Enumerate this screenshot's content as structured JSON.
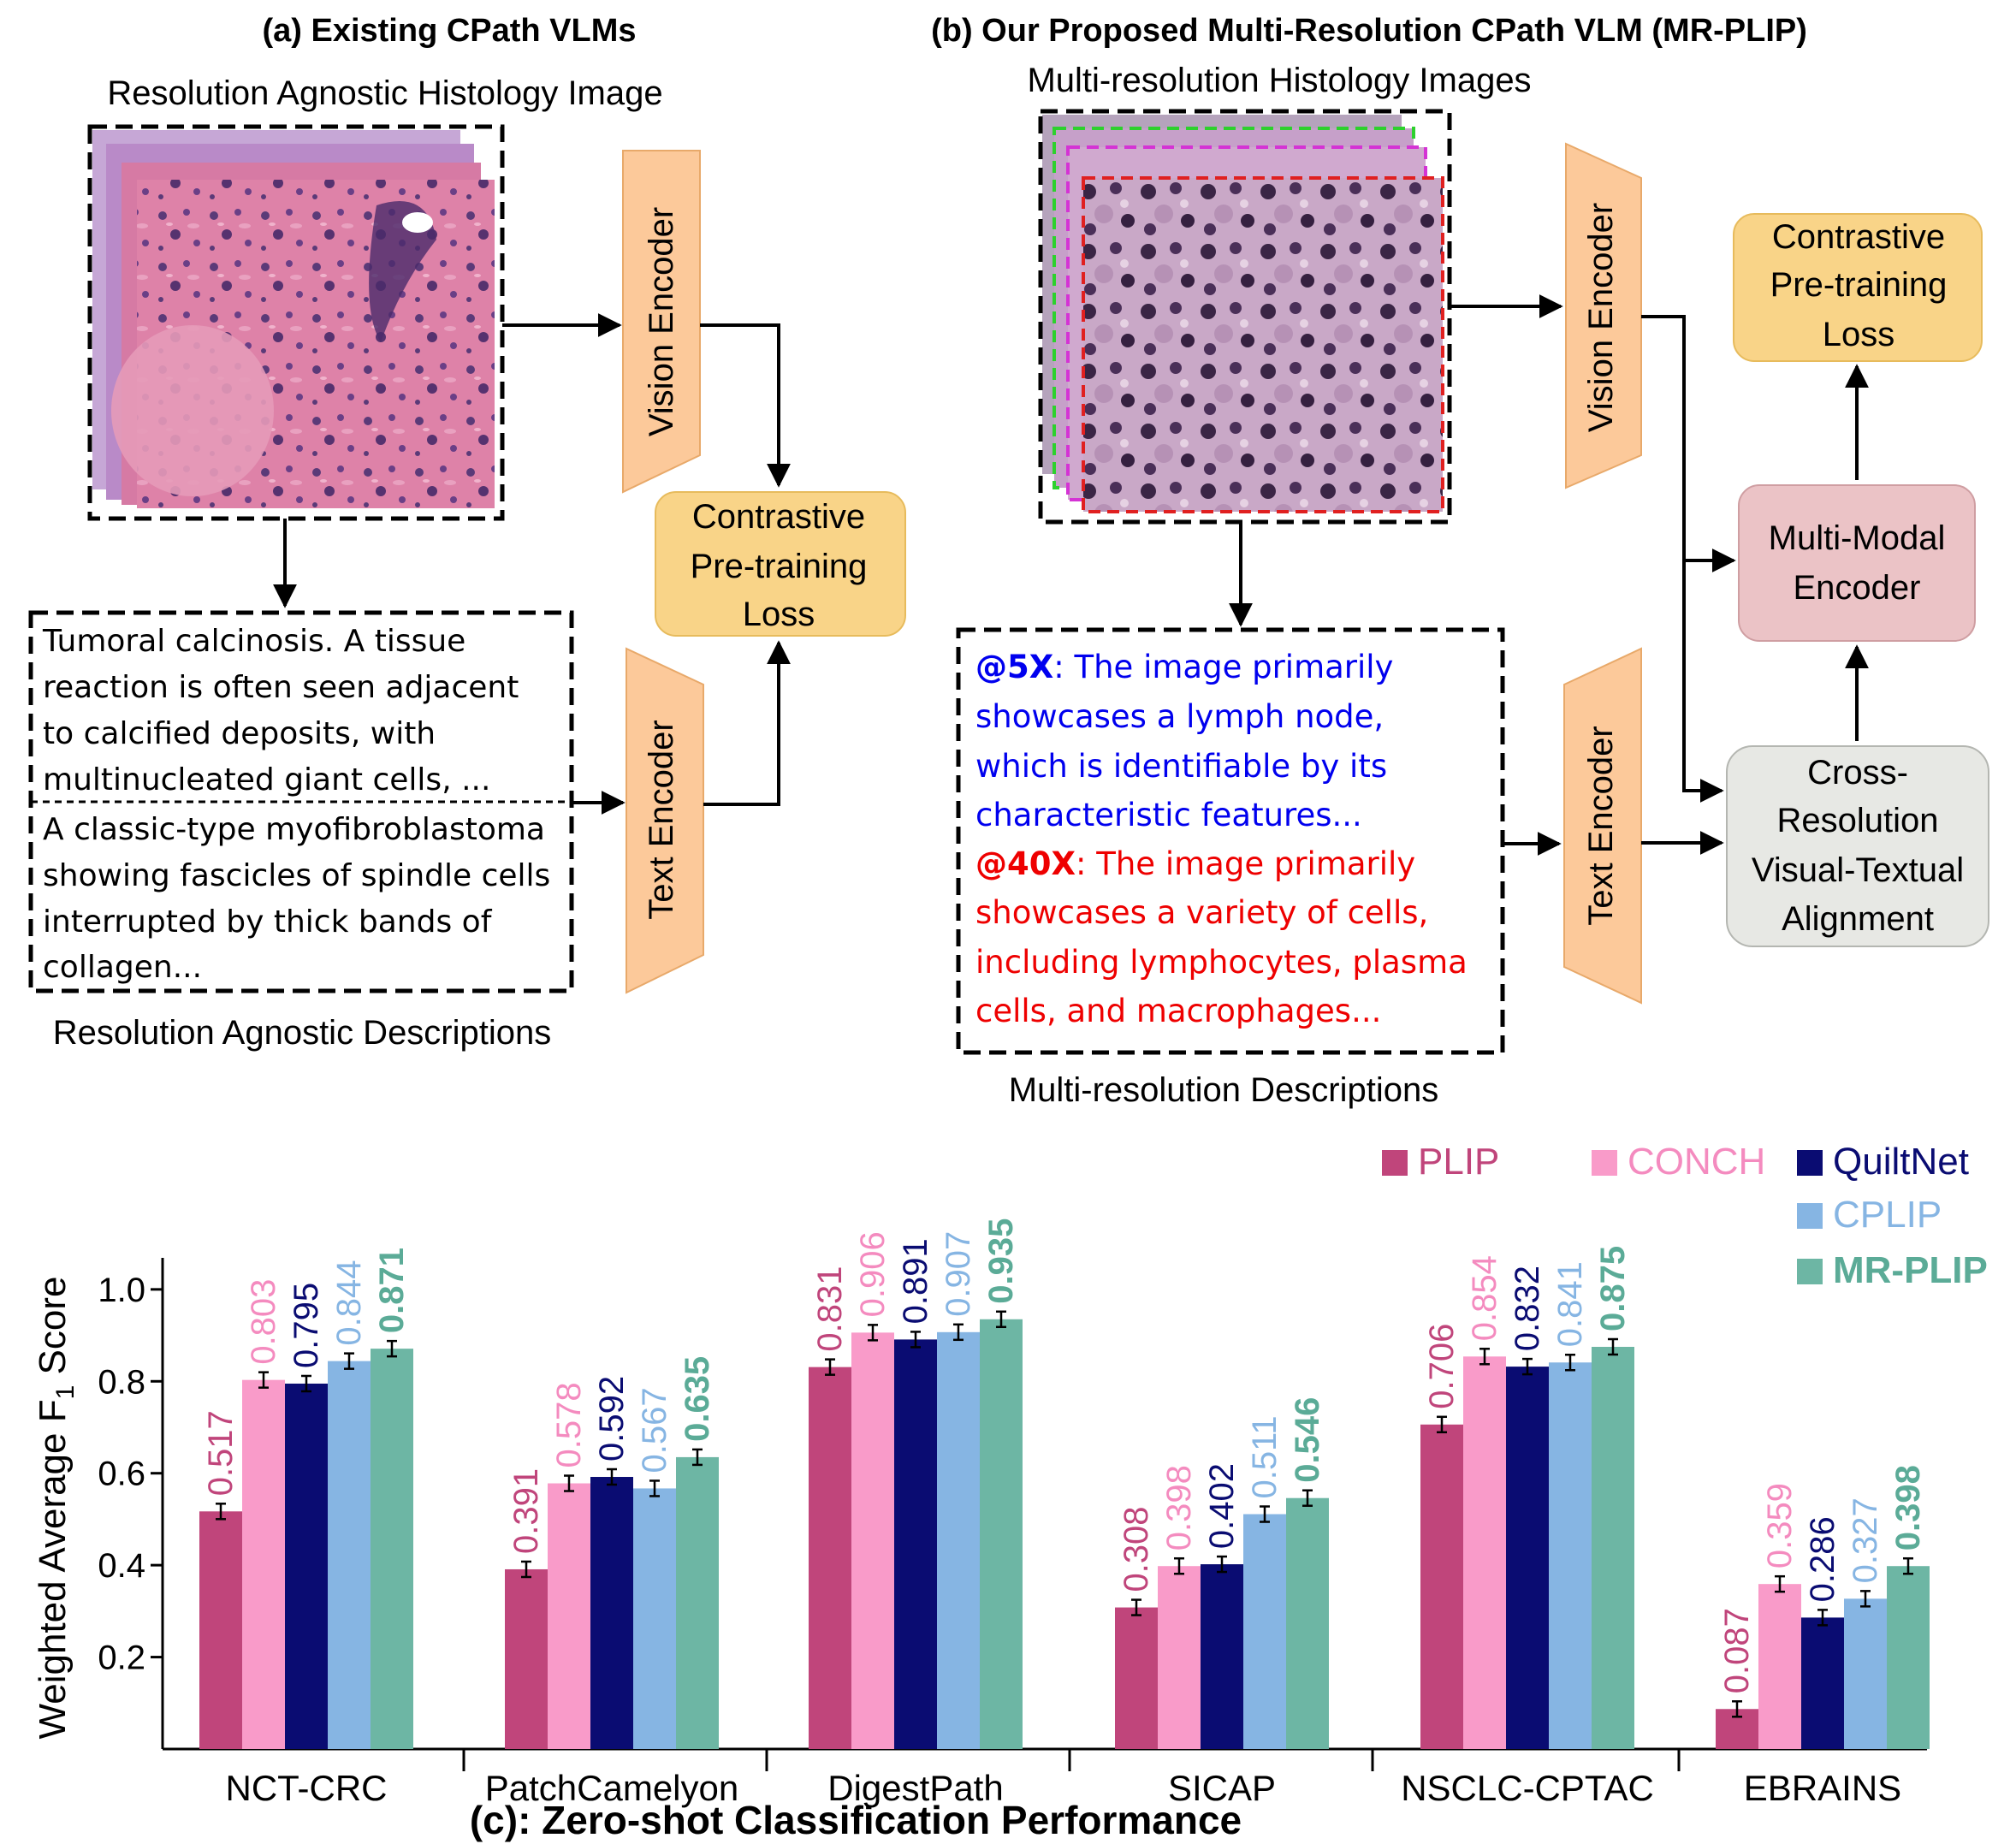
{
  "panel_a": {
    "title": "(a) Existing CPath VLMs",
    "image_caption": "Resolution Agnostic Histology Image",
    "vision_encoder": "Vision Encoder",
    "text_encoder": "Text Encoder",
    "loss_lines": [
      "Contrastive",
      "Pre-training",
      "Loss"
    ],
    "desc1_lines": [
      "Tumoral calcinosis. A tissue",
      "reaction is often seen adjacent",
      "to calcified deposits, with",
      "multinucleated giant cells, ..."
    ],
    "desc2_lines": [
      "A classic-type myofibroblastoma",
      "showing fascicles of spindle cells",
      "interrupted by thick bands of",
      "collagen..."
    ],
    "desc_caption": "Resolution Agnostic Descriptions"
  },
  "panel_b": {
    "title": "(b) Our Proposed Multi-Resolution CPath VLM (MR-PLIP)",
    "image_caption": "Multi-resolution Histology Images",
    "vision_encoder": "Vision Encoder",
    "text_encoder": "Text Encoder",
    "loss_lines": [
      "Contrastive",
      "Pre-training",
      "Loss"
    ],
    "multimodal_lines": [
      "Multi-Modal",
      "Encoder"
    ],
    "crossres_lines": [
      "Cross-",
      "Resolution",
      "Visual-Textual",
      "Alignment"
    ],
    "desc_5x_tag": "@5X",
    "desc_5x_lines": [
      ": The image primarily",
      "showcases a lymph node,",
      "which is identifiable by its",
      "characteristic features..."
    ],
    "desc_40x_tag": "@40X",
    "desc_40x_lines": [
      ": The image primarily",
      "showcases a variety of cells,",
      "including lymphocytes, plasma",
      "cells, and macrophages..."
    ],
    "desc_caption": "Multi-resolution Descriptions"
  },
  "colors": {
    "encoder_fill": "#fcc99a",
    "encoder_stroke": "#e8a96a",
    "loss_fill": "#f9d488",
    "loss_stroke": "#e7bb5c",
    "multimodal_fill": "#ebc3c6",
    "multimodal_stroke": "#cf9ea2",
    "crossres_fill": "#e7e8e4",
    "crossres_stroke": "#b4b6b1",
    "blue_text": "#0000ee",
    "red_text": "#ee0000",
    "tissue_pink": "#d9709d",
    "tissue_purple": "#5b3a78",
    "tissue_lavender": "#c8a9c5"
  },
  "chart_data": {
    "type": "bar",
    "title": "(c): Zero-shot Classification Performance",
    "xlabel": "",
    "ylabel": "Weighted Average F1 Score",
    "ylabel_main": "Weighted Average F",
    "ylabel_sub": "1",
    "ylabel_tail": " Score",
    "ylim": [
      0,
      1.05
    ],
    "yticks": [
      "0.2",
      "0.4",
      "0.6",
      "0.8",
      "1.0"
    ],
    "ytick_values": [
      0.2,
      0.4,
      0.6,
      0.8,
      1.0
    ],
    "error_bars": true,
    "legend_position": "top-right",
    "categories": [
      "NCT-CRC",
      "PatchCamelyon",
      "DigestPath",
      "SICAP",
      "NSCLC-CPTAC",
      "EBRAINS"
    ],
    "series": [
      {
        "name": "PLIP",
        "color": "#c0457b",
        "label_color": "#c0457b",
        "bold": false,
        "values": [
          0.517,
          0.391,
          0.831,
          0.308,
          0.706,
          0.087
        ],
        "labels": [
          "0.517",
          "0.391",
          "0.831",
          "0.308",
          "0.706",
          "0.087"
        ]
      },
      {
        "name": "CONCH",
        "color": "#f99bc9",
        "label_color": "#f48bbf",
        "bold": false,
        "values": [
          0.803,
          0.578,
          0.906,
          0.398,
          0.854,
          0.359
        ],
        "labels": [
          "0.803",
          "0.578",
          "0.906",
          "0.398",
          "0.854",
          "0.359"
        ]
      },
      {
        "name": "QuiltNet",
        "color": "#0a0c72",
        "label_color": "#0a0c72",
        "bold": false,
        "values": [
          0.795,
          0.592,
          0.891,
          0.402,
          0.832,
          0.286
        ],
        "labels": [
          "0.795",
          "0.592",
          "0.891",
          "0.402",
          "0.832",
          "0.286"
        ]
      },
      {
        "name": "CPLIP",
        "color": "#86b5e3",
        "label_color": "#86b5e3",
        "bold": false,
        "values": [
          0.844,
          0.567,
          0.907,
          0.511,
          0.841,
          0.327
        ],
        "labels": [
          "0.844",
          "0.567",
          "0.907",
          "0.511",
          "0.841",
          "0.327"
        ]
      },
      {
        "name": "MR-PLIP",
        "color": "#6db6a4",
        "label_color": "#5bab97",
        "bold": true,
        "values": [
          0.871,
          0.635,
          0.935,
          0.546,
          0.875,
          0.398
        ],
        "labels": [
          "0.871",
          "0.635",
          "0.935",
          "0.546",
          "0.875",
          "0.398"
        ]
      }
    ]
  }
}
